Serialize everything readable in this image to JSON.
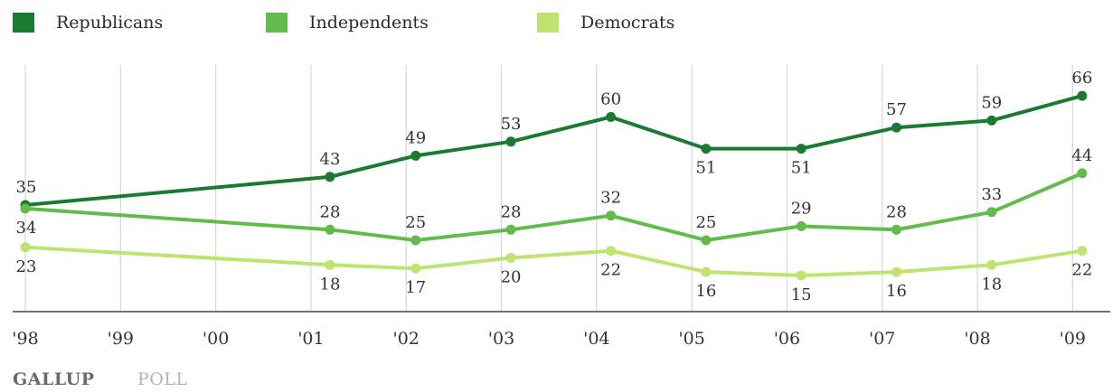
{
  "chart_data": {
    "type": "line",
    "categories": [
      "'98",
      "'99",
      "'00",
      "'01",
      "'02",
      "'03",
      "'04",
      "'05",
      "'06",
      "'07",
      "'08",
      "'09"
    ],
    "ylim": [
      0,
      100
    ],
    "grid": "vertical",
    "legend_position": "top-left",
    "series": [
      {
        "name": "Republicans",
        "color": "#1a7a32",
        "x": [
          0,
          3.2,
          4.1,
          5.1,
          6.15,
          7.15,
          8.15,
          9.15,
          10.15,
          11.1
        ],
        "x_labels": [
          "'98",
          "'01",
          "'02",
          "'03",
          "'04",
          "'05",
          "'06",
          "'07",
          "'08",
          "'09"
        ],
        "values": [
          35,
          43,
          49,
          53,
          60,
          51,
          51,
          57,
          59,
          66
        ],
        "label_pos": [
          "above",
          "above",
          "above",
          "above",
          "above",
          "below",
          "below",
          "above",
          "above",
          "above"
        ]
      },
      {
        "name": "Independents",
        "color": "#62bc4c",
        "x": [
          0,
          3.2,
          4.1,
          5.1,
          6.15,
          7.15,
          8.15,
          9.15,
          10.15,
          11.1
        ],
        "x_labels": [
          "'98",
          "'01",
          "'02",
          "'03",
          "'04",
          "'05",
          "'06",
          "'07",
          "'08",
          "'09"
        ],
        "values": [
          34,
          28,
          25,
          28,
          32,
          25,
          29,
          28,
          33,
          44
        ],
        "label_pos": [
          "below",
          "above",
          "above",
          "above",
          "above",
          "above",
          "above",
          "above",
          "above",
          "above"
        ]
      },
      {
        "name": "Democrats",
        "color": "#bfe36f",
        "x": [
          0,
          3.2,
          4.1,
          5.1,
          6.15,
          7.15,
          8.15,
          9.15,
          10.15,
          11.1
        ],
        "x_labels": [
          "'98",
          "'01",
          "'02",
          "'03",
          "'04",
          "'05",
          "'06",
          "'07",
          "'08",
          "'09"
        ],
        "values": [
          23,
          18,
          17,
          20,
          22,
          16,
          15,
          16,
          18,
          22
        ],
        "label_pos": [
          "below",
          "below",
          "below",
          "below",
          "below",
          "below",
          "below",
          "below",
          "below",
          "below"
        ]
      }
    ]
  },
  "branding": {
    "bold": "GALLUP",
    "light": "POLL"
  }
}
